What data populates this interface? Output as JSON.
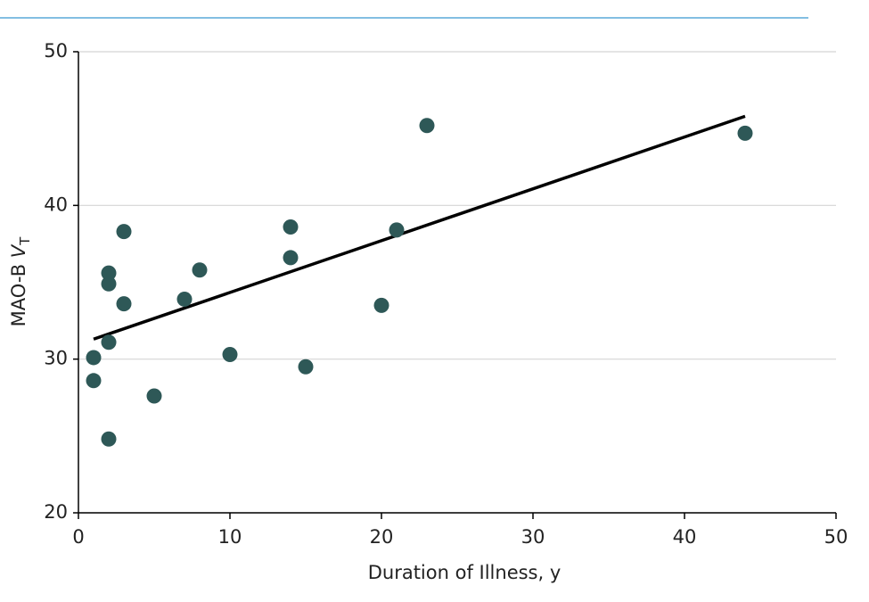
{
  "chart_data": {
    "type": "scatter",
    "xlabel": "Duration of Illness, y",
    "ylabel": "MAO-B ",
    "ylabel_var": "V",
    "ylabel_sub": "T",
    "x": [
      1,
      1,
      2,
      2,
      2,
      2,
      3,
      3,
      5,
      7,
      8,
      10,
      14,
      14,
      15,
      20,
      21,
      23,
      44
    ],
    "values": [
      28.6,
      30.1,
      24.8,
      31.1,
      34.9,
      35.6,
      33.6,
      38.3,
      27.6,
      33.9,
      35.8,
      30.3,
      36.6,
      38.6,
      29.5,
      33.5,
      38.4,
      45.2,
      44.7
    ],
    "color": "#2e5857",
    "fit": {
      "x": [
        1,
        44
      ],
      "values": [
        31.3,
        45.8
      ],
      "color": "#000000"
    },
    "xlim": [
      0,
      50
    ],
    "xticks": [
      0,
      10,
      20,
      30,
      40,
      50
    ],
    "ylim": [
      20,
      50
    ],
    "yticks": [
      20,
      30,
      40,
      50
    ],
    "grid": true
  }
}
